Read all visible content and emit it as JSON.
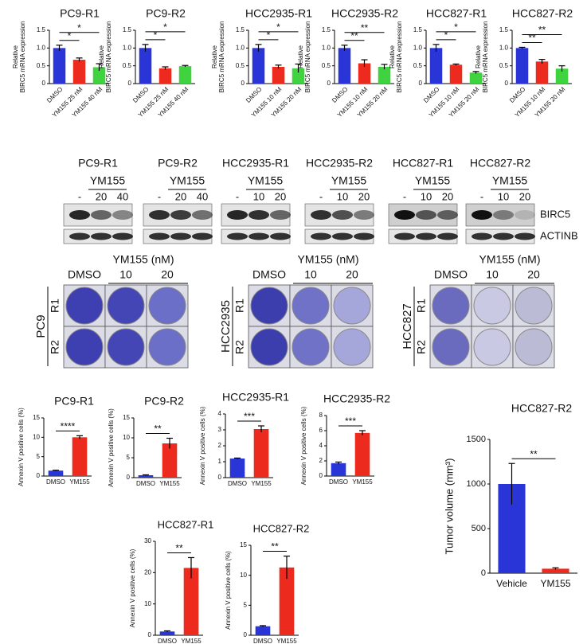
{
  "chart_data": [
    {
      "type": "bar",
      "title": "PC9-R1",
      "ylabel": [
        "Relative",
        "BIRC5 mRNA expression"
      ],
      "categories": [
        "DMSO",
        "YM155 25 nM",
        "YM155 40 nM"
      ],
      "values": [
        1.0,
        0.67,
        0.46
      ],
      "errors": [
        0.08,
        0.05,
        0.1
      ],
      "colors": [
        "#2a35d8",
        "#ec2a1e",
        "#3fd43f"
      ],
      "ylim": [
        0,
        1.5
      ],
      "yticks": [
        0,
        0.5,
        {
          "value": 1,
          "label": "1.0"
        },
        1.5
      ],
      "significance": [
        "*",
        "*"
      ]
    },
    {
      "type": "bar",
      "title": "PC9-R2",
      "ylabel": [
        "Relative",
        "BIRC5 mRNA expression"
      ],
      "categories": [
        "DMSO",
        "YM155 25 nM",
        "YM155 40 nM"
      ],
      "values": [
        1.0,
        0.43,
        0.49
      ],
      "errors": [
        0.1,
        0.04,
        0.02
      ],
      "colors": [
        "#2a35d8",
        "#ec2a1e",
        "#3fd43f"
      ],
      "ylim": [
        0,
        1.5
      ],
      "yticks": [
        0,
        0.5,
        {
          "value": 1,
          "label": "1.0"
        },
        1.5
      ],
      "significance": [
        "*",
        "*"
      ]
    },
    {
      "type": "bar",
      "title": "HCC2935-R1",
      "ylabel": [
        "Relative",
        "BIRC5 mRNA expression"
      ],
      "categories": [
        "DMSO",
        "YM155 10 nM",
        "YM155 20 nM"
      ],
      "values": [
        1.0,
        0.47,
        0.43
      ],
      "errors": [
        0.1,
        0.05,
        0.12
      ],
      "colors": [
        "#2a35d8",
        "#ec2a1e",
        "#3fd43f"
      ],
      "ylim": [
        0,
        1.5
      ],
      "yticks": [
        0,
        0.5,
        {
          "value": 1,
          "label": "1.0"
        },
        1.5
      ],
      "significance": [
        "*",
        "*"
      ]
    },
    {
      "type": "bar",
      "title": "HCC2935-R2",
      "ylabel": [
        "Relative",
        "BIRC5 mRNA expression"
      ],
      "categories": [
        "DMSO",
        "YM155 10 nM",
        "YM155 20 nM"
      ],
      "values": [
        1.0,
        0.57,
        0.47
      ],
      "errors": [
        0.08,
        0.1,
        0.07
      ],
      "colors": [
        "#2a35d8",
        "#ec2a1e",
        "#3fd43f"
      ],
      "ylim": [
        0,
        1.5
      ],
      "yticks": [
        0,
        0.5,
        {
          "value": 1,
          "label": "1.0"
        },
        1.5
      ],
      "significance": [
        "**",
        "**"
      ]
    },
    {
      "type": "bar",
      "title": "HCC827-R1",
      "ylabel": [
        "Relative",
        "BIRC5 mRNA expression"
      ],
      "categories": [
        "DMSO",
        "YM155 10 nM",
        "YM155 20 nM"
      ],
      "values": [
        1.0,
        0.53,
        0.31
      ],
      "errors": [
        0.1,
        0.02,
        0.03
      ],
      "colors": [
        "#2a35d8",
        "#ec2a1e",
        "#3fd43f"
      ],
      "ylim": [
        0,
        1.5
      ],
      "yticks": [
        0,
        0.5,
        {
          "value": 1,
          "label": "1.0"
        },
        1.5
      ],
      "significance": [
        "*",
        "*"
      ]
    },
    {
      "type": "bar",
      "title": "HCC827-R2",
      "ylabel": [
        "Relative",
        "BIRC5 mRNA expression"
      ],
      "categories": [
        "DMSO",
        "YM155 10 nM",
        "YM155 20 nM"
      ],
      "values": [
        1.0,
        0.62,
        0.42
      ],
      "errors": [
        0.02,
        0.06,
        0.08
      ],
      "colors": [
        "#2a35d8",
        "#ec2a1e",
        "#3fd43f"
      ],
      "ylim": [
        0,
        1.5
      ],
      "yticks": [
        0,
        0.5,
        {
          "value": 1,
          "label": "1.0"
        },
        1.5
      ],
      "significance": [
        "**",
        "**"
      ]
    },
    {
      "type": "bar",
      "title": "PC9-R1",
      "ylabel": "Annexin V positive cells (%)",
      "categories": [
        "DMSO",
        "YM155"
      ],
      "values": [
        1.4,
        10.0
      ],
      "errors": [
        0.1,
        0.4
      ],
      "colors": [
        "#2a35d8",
        "#ec2a1e"
      ],
      "ylim": [
        0,
        15
      ],
      "yticks": [
        0,
        5,
        10,
        15
      ],
      "significance": [
        "****"
      ]
    },
    {
      "type": "bar",
      "title": "PC9-R2",
      "ylabel": "Annexin V positive cells (%)",
      "categories": [
        "DMSO",
        "YM155"
      ],
      "values": [
        0.6,
        8.6
      ],
      "errors": [
        0.1,
        1.3
      ],
      "colors": [
        "#2a35d8",
        "#ec2a1e"
      ],
      "ylim": [
        0,
        15
      ],
      "yticks": [
        0,
        5,
        10,
        15
      ],
      "significance": [
        "**"
      ]
    },
    {
      "type": "bar",
      "title": "HCC2935-R1",
      "ylabel": "Annexin V positive cells (%)",
      "categories": [
        "DMSO",
        "YM155"
      ],
      "values": [
        1.2,
        3.05
      ],
      "errors": [
        0.03,
        0.2
      ],
      "colors": [
        "#2a35d8",
        "#ec2a1e"
      ],
      "ylim": [
        0,
        4
      ],
      "yticks": [
        0,
        1,
        2,
        3,
        4
      ],
      "significance": [
        "***"
      ]
    },
    {
      "type": "bar",
      "title": "HCC2935-R2",
      "ylabel": "Annexin V positive cells (%)",
      "categories": [
        "DMSO",
        "YM155"
      ],
      "values": [
        1.7,
        5.7
      ],
      "errors": [
        0.15,
        0.3
      ],
      "colors": [
        "#2a35d8",
        "#ec2a1e"
      ],
      "ylim": [
        0,
        8
      ],
      "yticks": [
        0,
        2,
        4,
        6,
        8
      ],
      "significance": [
        "***"
      ]
    },
    {
      "type": "bar",
      "title": "HCC827-R1",
      "ylabel": "Annexin V positive cells (%)",
      "categories": [
        "DMSO",
        "YM155"
      ],
      "values": [
        1.2,
        21.5
      ],
      "errors": [
        0.2,
        3.3
      ],
      "colors": [
        "#2a35d8",
        "#ec2a1e"
      ],
      "ylim": [
        0,
        30
      ],
      "yticks": [
        0,
        10,
        20,
        30
      ],
      "significance": [
        "**"
      ]
    },
    {
      "type": "bar",
      "title": "HCC827-R2",
      "ylabel": "Annexin V positive cells (%)",
      "categories": [
        "DMSO",
        "YM155"
      ],
      "values": [
        1.5,
        11.3
      ],
      "errors": [
        0.1,
        1.9
      ],
      "colors": [
        "#2a35d8",
        "#ec2a1e"
      ],
      "ylim": [
        0,
        15
      ],
      "yticks": [
        0,
        5,
        10,
        15
      ],
      "significance": [
        "**"
      ]
    },
    {
      "type": "bar",
      "title": "HCC827-R2",
      "ylabel": "Tumor volume (mm³)",
      "categories": [
        "Vehicle",
        "YM155"
      ],
      "values": [
        1000,
        50
      ],
      "errors": [
        230,
        10
      ],
      "colors": [
        "#2a35d8",
        "#ec2a1e"
      ],
      "ylim": [
        0,
        1500
      ],
      "yticks": [
        0,
        500,
        1000,
        1500
      ],
      "significance": [
        "**"
      ]
    }
  ],
  "blots": {
    "panels": [
      {
        "title": "PC9-R1",
        "treatment": "YM155",
        "lanes": [
          "-",
          "20",
          "40"
        ]
      },
      {
        "title": "PC9-R2",
        "treatment": "YM155",
        "lanes": [
          "-",
          "20",
          "40"
        ]
      },
      {
        "title": "HCC2935-R1",
        "treatment": "YM155",
        "lanes": [
          "-",
          "10",
          "20"
        ]
      },
      {
        "title": "HCC2935-R2",
        "treatment": "YM155",
        "lanes": [
          "-",
          "10",
          "20"
        ]
      },
      {
        "title": "HCC827-R1",
        "treatment": "YM155",
        "lanes": [
          "-",
          "10",
          "20"
        ]
      },
      {
        "title": "HCC827-R2",
        "treatment": "YM155",
        "lanes": [
          "-",
          "10",
          "20"
        ]
      }
    ],
    "proteins": [
      "BIRC5",
      "ACTINB"
    ]
  },
  "colony": {
    "panels": [
      {
        "cell": "PC9",
        "header": "YM155 (nM)",
        "doses": [
          "DMSO",
          "10",
          "20"
        ],
        "lines": [
          "R1",
          "R2"
        ]
      },
      {
        "cell": "HCC2935",
        "header": "YM155 (nM)",
        "doses": [
          "DMSO",
          "10",
          "20"
        ],
        "lines": [
          "R1",
          "R2"
        ]
      },
      {
        "cell": "HCC827",
        "header": "YM155 (nM)",
        "doses": [
          "DMSO",
          "10",
          "20"
        ],
        "lines": [
          "R1",
          "R2"
        ]
      }
    ]
  }
}
